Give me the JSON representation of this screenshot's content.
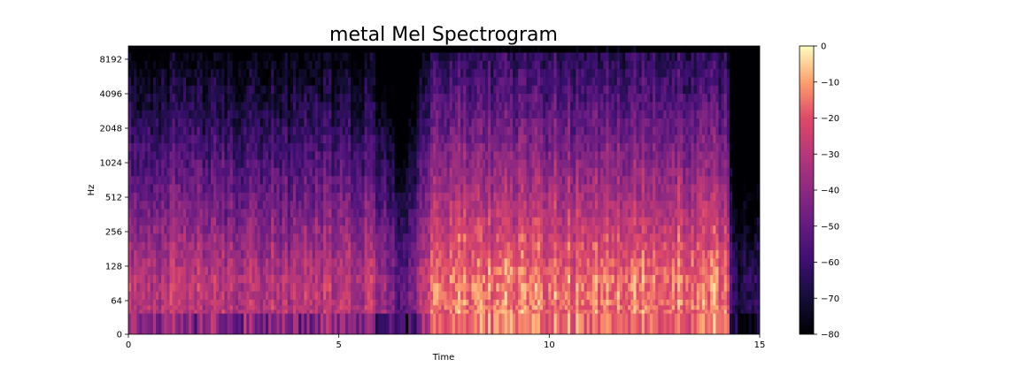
{
  "chart_data": {
    "type": "heatmap",
    "title": "metal Mel Spectrogram",
    "xlabel": "Time",
    "ylabel": "Hz",
    "xlim": [
      0,
      15
    ],
    "x_ticks": [
      {
        "value": 0,
        "label": "0"
      },
      {
        "value": 5,
        "label": "5"
      },
      {
        "value": 10,
        "label": "10"
      },
      {
        "value": 15,
        "label": "15"
      }
    ],
    "y_ticks": [
      {
        "value": 0,
        "label": "0"
      },
      {
        "value": 64,
        "label": "64"
      },
      {
        "value": 128,
        "label": "128"
      },
      {
        "value": 256,
        "label": "256"
      },
      {
        "value": 512,
        "label": "512"
      },
      {
        "value": 1024,
        "label": "1024"
      },
      {
        "value": 2048,
        "label": "2048"
      },
      {
        "value": 4096,
        "label": "4096"
      },
      {
        "value": 8192,
        "label": "8192"
      }
    ],
    "colorbar": {
      "colormap": "magma",
      "range": [
        -80,
        0
      ],
      "ticks": [
        {
          "value": 0,
          "label": "0"
        },
        {
          "value": -10,
          "label": "−10"
        },
        {
          "value": -20,
          "label": "−20"
        },
        {
          "value": -30,
          "label": "−30"
        },
        {
          "value": -40,
          "label": "−40"
        },
        {
          "value": -50,
          "label": "−50"
        },
        {
          "value": -60,
          "label": "−60"
        },
        {
          "value": -70,
          "label": "−70"
        },
        {
          "value": -80,
          "label": "−80"
        }
      ]
    },
    "energy_profile": {
      "time": [
        0,
        5.8,
        6.6,
        7.3,
        14.2,
        14.4,
        15
      ],
      "low_band_db": [
        -30,
        -30,
        -55,
        -15,
        -15,
        -65,
        -65
      ]
    }
  }
}
